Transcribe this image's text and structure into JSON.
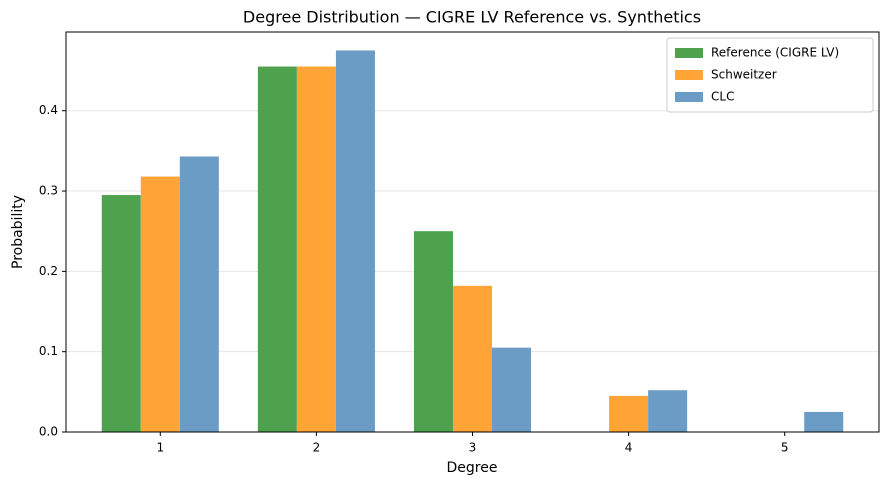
{
  "chart_data": {
    "type": "bar",
    "title": "Degree Distribution — CIGRE LV Reference vs. Synthetics",
    "x_label": "Degree",
    "y_label": "Probability",
    "categories": [
      "1",
      "2",
      "3",
      "4",
      "5"
    ],
    "series": [
      {
        "name": "Reference (CIGRE LV)",
        "color": "#4ea24e",
        "values": [
          0.295,
          0.455,
          0.25,
          0,
          0
        ]
      },
      {
        "name": "Schweitzer",
        "color": "#ffa435",
        "values": [
          0.318,
          0.455,
          0.182,
          0.045,
          0
        ]
      },
      {
        "name": "CLC",
        "color": "#6a9cc5",
        "values": [
          0.343,
          0.475,
          0.105,
          0.052,
          0.025
        ]
      }
    ],
    "ylim": [
      0,
      0.498
    ],
    "yticks": [
      {
        "value": 0,
        "label": "0.0"
      },
      0.1,
      0.2,
      0.3,
      0.4
    ],
    "grid": true,
    "legend": "upper right"
  }
}
